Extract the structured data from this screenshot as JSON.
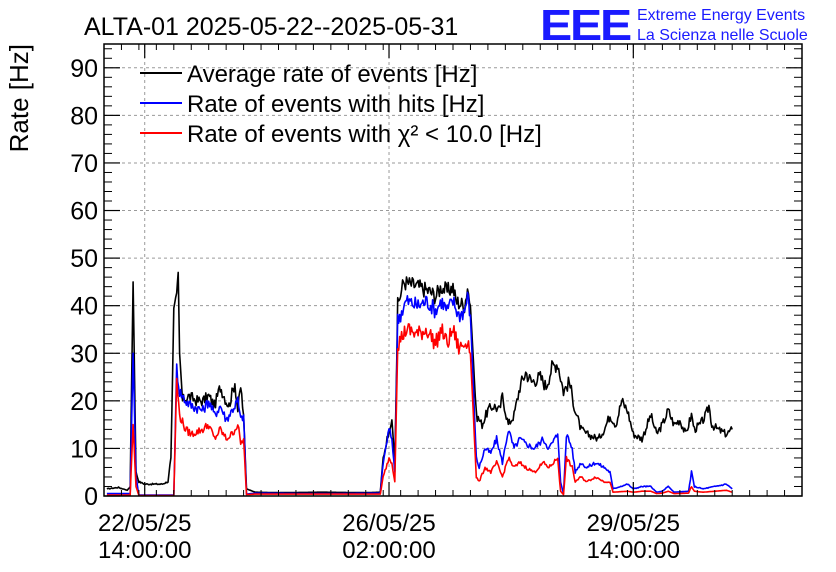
{
  "logo": {
    "mark": "EEE",
    "line1": "Extreme Energy Events",
    "line2": "La Scienza nelle Scuole",
    "color": "#1a1aff"
  },
  "chart_data": {
    "type": "line",
    "title": "ALTA-01 2025-05-22--2025-05-31",
    "ylabel": "Rate [Hz]",
    "xlabel": "",
    "ylim": [
      0,
      95
    ],
    "xlim_hours": [
      0,
      240
    ],
    "grid": true,
    "legend_position": "top-left",
    "yticks": [
      0,
      10,
      20,
      30,
      40,
      50,
      60,
      70,
      80,
      90
    ],
    "xticks": [
      {
        "date": "22/05/25",
        "time": "14:00:00",
        "hour": 14
      },
      {
        "date": "26/05/25",
        "time": "02:00:00",
        "hour": 98
      },
      {
        "date": "29/05/25",
        "time": "14:00:00",
        "hour": 182
      }
    ],
    "series": [
      {
        "name": "Average rate of events [Hz]",
        "color": "#000000",
        "points": [
          [
            1,
            1.5
          ],
          [
            5,
            1.8
          ],
          [
            8,
            1.2
          ],
          [
            9,
            2
          ],
          [
            10,
            45
          ],
          [
            11,
            5
          ],
          [
            12,
            3
          ],
          [
            14,
            2.5
          ],
          [
            20,
            2.5
          ],
          [
            22,
            3
          ],
          [
            23,
            8
          ],
          [
            24,
            38
          ],
          [
            25,
            42
          ],
          [
            25.5,
            47
          ],
          [
            26,
            30
          ],
          [
            27,
            20
          ],
          [
            29,
            21
          ],
          [
            32,
            20
          ],
          [
            34,
            20
          ],
          [
            36,
            21
          ],
          [
            38,
            19
          ],
          [
            40,
            23
          ],
          [
            42,
            20
          ],
          [
            43,
            19
          ],
          [
            45,
            24
          ],
          [
            46,
            18
          ],
          [
            47,
            23
          ],
          [
            48,
            17
          ],
          [
            49,
            1.5
          ],
          [
            52,
            0.8
          ],
          [
            60,
            0.7
          ],
          [
            75,
            0.8
          ],
          [
            90,
            0.7
          ],
          [
            95,
            0.8
          ],
          [
            96,
            8
          ],
          [
            98,
            14
          ],
          [
            99,
            16
          ],
          [
            100,
            7
          ],
          [
            101,
            40
          ],
          [
            103,
            45
          ],
          [
            108,
            44
          ],
          [
            112,
            43
          ],
          [
            114,
            42
          ],
          [
            116,
            44
          ],
          [
            118,
            43
          ],
          [
            120,
            44
          ],
          [
            121,
            41
          ],
          [
            124,
            40
          ],
          [
            125,
            44
          ],
          [
            126,
            40
          ],
          [
            128,
            17
          ],
          [
            130,
            15
          ],
          [
            132,
            18
          ],
          [
            134,
            19
          ],
          [
            136,
            18
          ],
          [
            137,
            21
          ],
          [
            139,
            15
          ],
          [
            141,
            17
          ],
          [
            143,
            23
          ],
          [
            145,
            26
          ],
          [
            147,
            24
          ],
          [
            150,
            25
          ],
          [
            152,
            23
          ],
          [
            154,
            27
          ],
          [
            156,
            28
          ],
          [
            157,
            25
          ],
          [
            158,
            22
          ],
          [
            160,
            24
          ],
          [
            162,
            18
          ],
          [
            164,
            14
          ],
          [
            166,
            13
          ],
          [
            170,
            12
          ],
          [
            172,
            14
          ],
          [
            174,
            17
          ],
          [
            176,
            15
          ],
          [
            178,
            20
          ],
          [
            180,
            18
          ],
          [
            182,
            13
          ],
          [
            185,
            12
          ],
          [
            188,
            17
          ],
          [
            190,
            13
          ],
          [
            192,
            15
          ],
          [
            194,
            18
          ],
          [
            196,
            15
          ],
          [
            198,
            16
          ],
          [
            200,
            13
          ],
          [
            202,
            17
          ],
          [
            203,
            14
          ],
          [
            205,
            15
          ],
          [
            207,
            17
          ],
          [
            208,
            19
          ],
          [
            209,
            15
          ],
          [
            211,
            14
          ],
          [
            214,
            13
          ],
          [
            216,
            14
          ]
        ]
      },
      {
        "name": "Rate of events with hits [Hz]",
        "color": "#0000ff",
        "points": [
          [
            1,
            0.5
          ],
          [
            9,
            0.5
          ],
          [
            10,
            30
          ],
          [
            11,
            4
          ],
          [
            12,
            0.2
          ],
          [
            24,
            0.2
          ],
          [
            25,
            27
          ],
          [
            26,
            22
          ],
          [
            28,
            20
          ],
          [
            30,
            19
          ],
          [
            34,
            18
          ],
          [
            36,
            20
          ],
          [
            38,
            17
          ],
          [
            40,
            19
          ],
          [
            42,
            16
          ],
          [
            44,
            18
          ],
          [
            46,
            20
          ],
          [
            47,
            16
          ],
          [
            48,
            17
          ],
          [
            49,
            0.4
          ],
          [
            52,
            0.6
          ],
          [
            75,
            0.5
          ],
          [
            95,
            0.6
          ],
          [
            96,
            7
          ],
          [
            98,
            14
          ],
          [
            99,
            12
          ],
          [
            100,
            5
          ],
          [
            101,
            37
          ],
          [
            104,
            41
          ],
          [
            108,
            40
          ],
          [
            111,
            41
          ],
          [
            114,
            39
          ],
          [
            116,
            41
          ],
          [
            118,
            39
          ],
          [
            120,
            41
          ],
          [
            122,
            38
          ],
          [
            124,
            39
          ],
          [
            125,
            42
          ],
          [
            126,
            38
          ],
          [
            128,
            8
          ],
          [
            129,
            6
          ],
          [
            131,
            10
          ],
          [
            133,
            9
          ],
          [
            135,
            12
          ],
          [
            137,
            7
          ],
          [
            139,
            14
          ],
          [
            141,
            10
          ],
          [
            143,
            12
          ],
          [
            145,
            11
          ],
          [
            148,
            10
          ],
          [
            151,
            12
          ],
          [
            153,
            10
          ],
          [
            156,
            13
          ],
          [
            157,
            3
          ],
          [
            158,
            0.5
          ],
          [
            159,
            13
          ],
          [
            161,
            10
          ],
          [
            162,
            5
          ],
          [
            164,
            7
          ],
          [
            166,
            6
          ],
          [
            169,
            7
          ],
          [
            172,
            6
          ],
          [
            174,
            5
          ],
          [
            175,
            1.5
          ],
          [
            180,
            2.5
          ],
          [
            182,
            1.5
          ],
          [
            185,
            2
          ],
          [
            188,
            2
          ],
          [
            190,
            0.8
          ],
          [
            192,
            1
          ],
          [
            194,
            2
          ],
          [
            196,
            0.8
          ],
          [
            201,
            1
          ],
          [
            202,
            5
          ],
          [
            203,
            2
          ],
          [
            206,
            1.5
          ],
          [
            210,
            2
          ],
          [
            214,
            2.5
          ],
          [
            216,
            1.5
          ]
        ]
      },
      {
        "name": "Rate of events with χ² < 10.0 [Hz]",
        "color": "#ff0000",
        "points": [
          [
            1,
            0.2
          ],
          [
            9,
            0.2
          ],
          [
            10,
            15
          ],
          [
            11,
            2
          ],
          [
            12,
            0.1
          ],
          [
            24,
            0.1
          ],
          [
            25,
            24
          ],
          [
            26,
            17
          ],
          [
            28,
            14
          ],
          [
            30,
            13
          ],
          [
            34,
            14
          ],
          [
            36,
            15
          ],
          [
            38,
            12
          ],
          [
            40,
            14
          ],
          [
            42,
            12
          ],
          [
            44,
            13
          ],
          [
            46,
            15
          ],
          [
            47,
            11
          ],
          [
            48,
            12
          ],
          [
            49,
            0.3
          ],
          [
            52,
            0.4
          ],
          [
            75,
            0.4
          ],
          [
            95,
            0.4
          ],
          [
            96,
            4
          ],
          [
            98,
            8
          ],
          [
            99,
            7
          ],
          [
            100,
            3
          ],
          [
            101,
            32
          ],
          [
            104,
            35
          ],
          [
            108,
            34
          ],
          [
            111,
            35
          ],
          [
            114,
            32
          ],
          [
            116,
            35
          ],
          [
            118,
            32
          ],
          [
            120,
            35
          ],
          [
            122,
            31
          ],
          [
            124,
            32
          ],
          [
            125,
            33
          ],
          [
            126,
            30
          ],
          [
            128,
            4
          ],
          [
            129,
            3
          ],
          [
            131,
            6
          ],
          [
            133,
            5
          ],
          [
            135,
            7
          ],
          [
            137,
            4
          ],
          [
            139,
            8
          ],
          [
            141,
            6
          ],
          [
            143,
            7
          ],
          [
            145,
            6
          ],
          [
            148,
            5
          ],
          [
            151,
            7
          ],
          [
            153,
            6
          ],
          [
            156,
            8
          ],
          [
            157,
            1
          ],
          [
            158,
            0.3
          ],
          [
            159,
            8
          ],
          [
            161,
            6
          ],
          [
            162,
            3
          ],
          [
            164,
            4
          ],
          [
            166,
            3
          ],
          [
            169,
            4
          ],
          [
            172,
            3
          ],
          [
            174,
            3
          ],
          [
            175,
            0.8
          ],
          [
            180,
            1
          ],
          [
            182,
            0.8
          ],
          [
            185,
            1
          ],
          [
            188,
            1
          ],
          [
            190,
            0.5
          ],
          [
            192,
            0.6
          ],
          [
            194,
            1
          ],
          [
            196,
            0.5
          ],
          [
            201,
            0.6
          ],
          [
            202,
            2
          ],
          [
            203,
            1
          ],
          [
            206,
            0.8
          ],
          [
            210,
            1
          ],
          [
            214,
            1.2
          ],
          [
            216,
            0.8
          ]
        ]
      }
    ]
  }
}
